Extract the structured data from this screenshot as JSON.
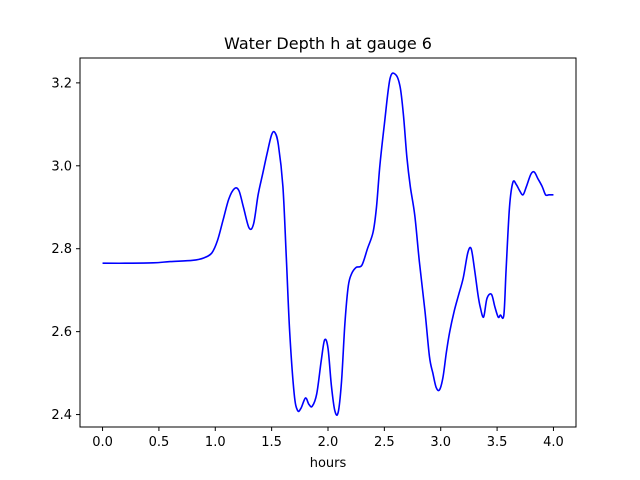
{
  "chart_data": {
    "type": "line",
    "title": "Water Depth h at gauge 6",
    "xlabel": "hours",
    "ylabel": "",
    "xlim": [
      -0.2,
      4.2
    ],
    "ylim": [
      2.37,
      3.26
    ],
    "x_ticks": [
      0.0,
      0.5,
      1.0,
      1.5,
      2.0,
      2.5,
      3.0,
      3.5,
      4.0
    ],
    "x_tick_labels": [
      "0.0",
      "0.5",
      "1.0",
      "1.5",
      "2.0",
      "2.5",
      "3.0",
      "3.5",
      "4.0"
    ],
    "y_ticks": [
      2.4,
      2.6,
      2.8,
      3.0,
      3.2
    ],
    "y_tick_labels": [
      "2.4",
      "2.6",
      "2.8",
      "3.0",
      "3.2"
    ],
    "grid": false,
    "legend": "none",
    "colors": {
      "line": "#0000ff",
      "axes": "#000000",
      "background": "#ffffff"
    },
    "series": [
      {
        "x": [
          0.0,
          0.2,
          0.45,
          0.6,
          0.8,
          0.9,
          0.97,
          1.02,
          1.07,
          1.12,
          1.17,
          1.21,
          1.25,
          1.3,
          1.34,
          1.38,
          1.42,
          1.46,
          1.5,
          1.53,
          1.56,
          1.6,
          1.63,
          1.66,
          1.7,
          1.73,
          1.76,
          1.8,
          1.83,
          1.86,
          1.9,
          1.94,
          1.97,
          2.0,
          2.03,
          2.06,
          2.09,
          2.12,
          2.15,
          2.18,
          2.21,
          2.25,
          2.3,
          2.35,
          2.4,
          2.43,
          2.46,
          2.5,
          2.55,
          2.6,
          2.64,
          2.67,
          2.7,
          2.73,
          2.77,
          2.81,
          2.86,
          2.9,
          2.93,
          2.96,
          2.99,
          3.02,
          3.05,
          3.08,
          3.12,
          3.16,
          3.2,
          3.24,
          3.27,
          3.3,
          3.33,
          3.35,
          3.38,
          3.41,
          3.45,
          3.48,
          3.51,
          3.53,
          3.56,
          3.58,
          3.61,
          3.64,
          3.67,
          3.7,
          3.73,
          3.76,
          3.8,
          3.83,
          3.86,
          3.9,
          3.93,
          3.96,
          4.0
        ],
        "y": [
          2.765,
          2.765,
          2.766,
          2.769,
          2.772,
          2.778,
          2.79,
          2.82,
          2.87,
          2.92,
          2.945,
          2.94,
          2.9,
          2.85,
          2.86,
          2.93,
          2.98,
          3.03,
          3.075,
          3.08,
          3.05,
          2.95,
          2.78,
          2.6,
          2.45,
          2.41,
          2.415,
          2.44,
          2.425,
          2.42,
          2.45,
          2.53,
          2.58,
          2.56,
          2.47,
          2.41,
          2.405,
          2.48,
          2.62,
          2.71,
          2.74,
          2.755,
          2.76,
          2.8,
          2.84,
          2.9,
          3.0,
          3.1,
          3.21,
          3.22,
          3.19,
          3.12,
          3.02,
          2.95,
          2.88,
          2.77,
          2.65,
          2.54,
          2.5,
          2.465,
          2.46,
          2.49,
          2.55,
          2.6,
          2.65,
          2.69,
          2.73,
          2.79,
          2.8,
          2.75,
          2.69,
          2.66,
          2.635,
          2.68,
          2.69,
          2.66,
          2.635,
          2.64,
          2.64,
          2.75,
          2.9,
          2.96,
          2.955,
          2.94,
          2.93,
          2.95,
          2.98,
          2.985,
          2.97,
          2.95,
          2.93,
          2.93,
          2.93
        ]
      }
    ]
  }
}
